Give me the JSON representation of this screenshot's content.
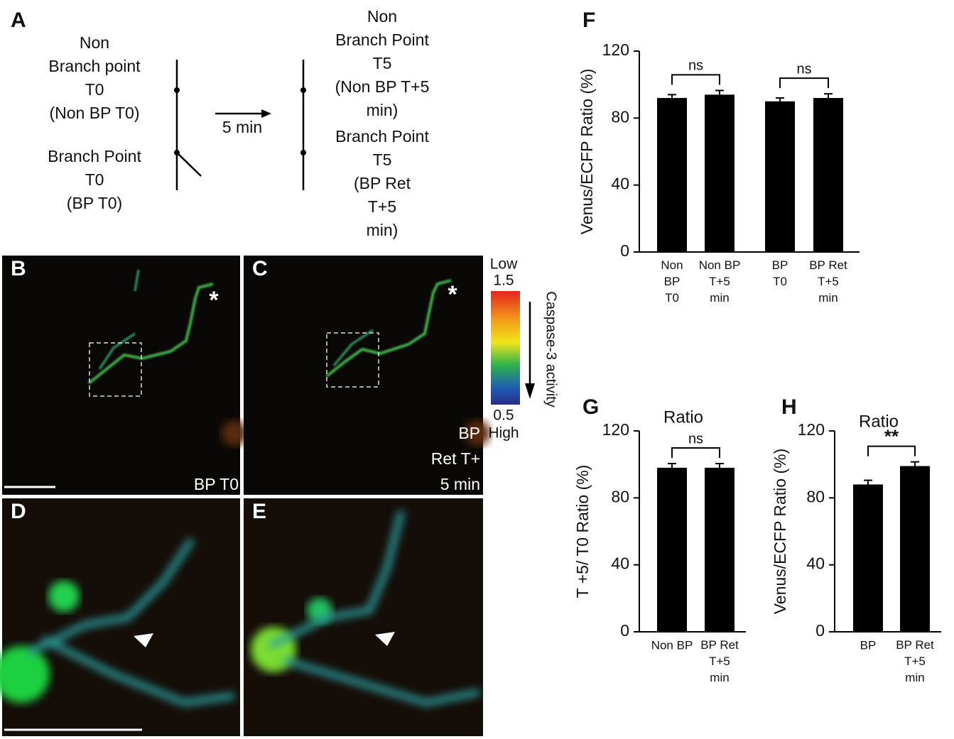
{
  "panel_letters": [
    "A",
    "B",
    "C",
    "D",
    "E"
  ],
  "schematic": {
    "left_top": "Non\nBranch point\nT0\n(Non BP T0)",
    "left_bottom": "Branch Point\nT0\n(BP T0)",
    "arrow_label": "5 min",
    "right_top": "Non\nBranch Point\nT5\n(Non BP T+5\nmin)",
    "right_bottom": "Branch Point\nT5\n(BP Ret\nT+5\nmin)"
  },
  "images": {
    "b_label": "BP T0",
    "c_label": "BP\nRet T+\n5 min",
    "marker": "*"
  },
  "colorbar": {
    "top_label": "Low",
    "max": 1.5,
    "min": 0.5,
    "bottom_label": "High",
    "axis_label": "Caspase-3 activity"
  },
  "chart_data": [
    {
      "type": "bar",
      "panel": "F",
      "ylabel": "Venus/ECFP Ratio (%)",
      "categories": [
        "Non\nBP\nT0",
        "Non BP\nT+5\nmin",
        "BP\nT0",
        "BP Ret\nT+5\nmin"
      ],
      "values": [
        92,
        94,
        90,
        92
      ],
      "errors": [
        2,
        2.5,
        2,
        2.5
      ],
      "color": "#000000",
      "ylim": [
        0,
        120
      ],
      "yticks": [
        0,
        40,
        80,
        120
      ],
      "significance": [
        {
          "label": "ns",
          "from": 0,
          "to": 1
        },
        {
          "label": "ns",
          "from": 2,
          "to": 3
        }
      ]
    },
    {
      "type": "bar",
      "panel": "G",
      "title": "Ratio",
      "ylabel": "T +5/ T0 Ratio (%)",
      "categories": [
        "Non BP",
        "BP Ret\nT+5\nmin"
      ],
      "values": [
        98,
        98
      ],
      "errors": [
        2.5,
        2.5
      ],
      "color": "#000000",
      "ylim": [
        0,
        120
      ],
      "yticks": [
        0,
        40,
        80,
        120
      ],
      "significance": [
        {
          "label": "ns",
          "from": 0,
          "to": 1
        }
      ]
    },
    {
      "type": "bar",
      "panel": "H",
      "title": "Ratio",
      "ylabel": "Venus/ECFP Ratio (%)",
      "categories": [
        "BP",
        "BP Ret\nT+5\nmin"
      ],
      "values": [
        88,
        99
      ],
      "errors": [
        2.5,
        2.5
      ],
      "color": "#000000",
      "ylim": [
        0,
        120
      ],
      "yticks": [
        0,
        40,
        80,
        120
      ],
      "significance": [
        {
          "label": "**",
          "from": 0,
          "to": 1
        }
      ]
    }
  ]
}
